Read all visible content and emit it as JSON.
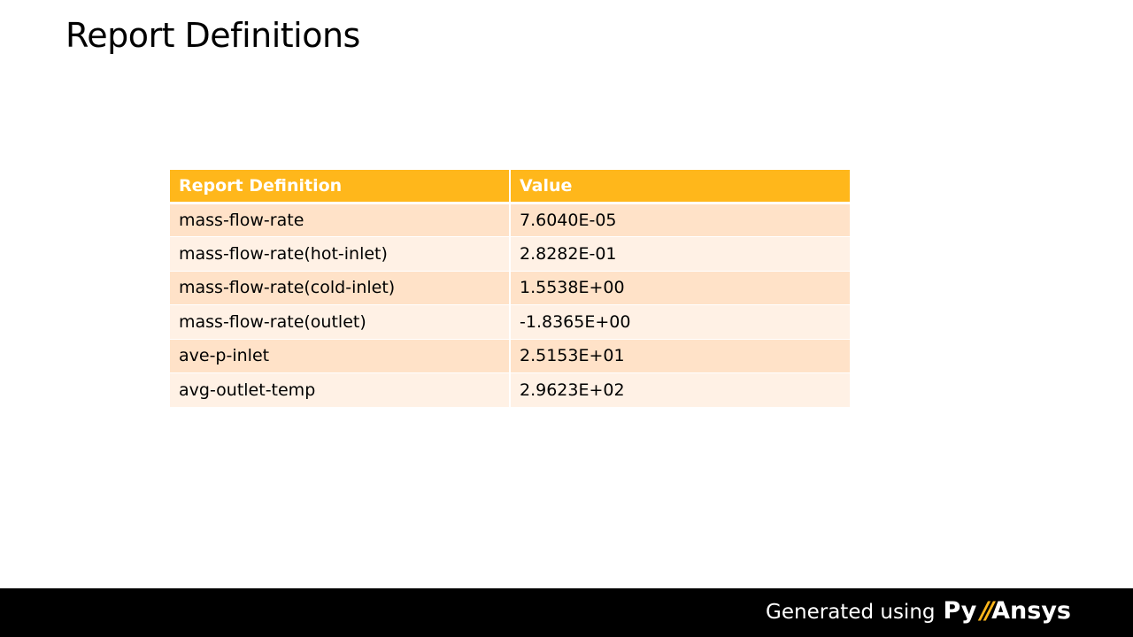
{
  "slide": {
    "title": "Report Definitions"
  },
  "table": {
    "headers": [
      "Report Definition",
      "Value"
    ],
    "rows": [
      {
        "name": "mass-flow-rate",
        "value": "7.6040E-05"
      },
      {
        "name": "mass-flow-rate(hot-inlet)",
        "value": "2.8282E-01"
      },
      {
        "name": "mass-flow-rate(cold-inlet)",
        "value": "1.5538E+00"
      },
      {
        "name": "mass-flow-rate(outlet)",
        "value": "-1.8365E+00"
      },
      {
        "name": "ave-p-inlet",
        "value": "2.5153E+01"
      },
      {
        "name": "avg-outlet-temp",
        "value": "2.9623E+02"
      }
    ]
  },
  "footer": {
    "generated_text": "Generated using",
    "brand_prefix": "Py",
    "brand_slash": "//",
    "brand_suffix": "Ansys"
  },
  "colors": {
    "header_bg": "#ffb71b",
    "row_odd_bg": "#ffe2c8",
    "row_even_bg": "#fff1e5",
    "footer_bg": "#000000",
    "brand_accent": "#ffb71b"
  }
}
